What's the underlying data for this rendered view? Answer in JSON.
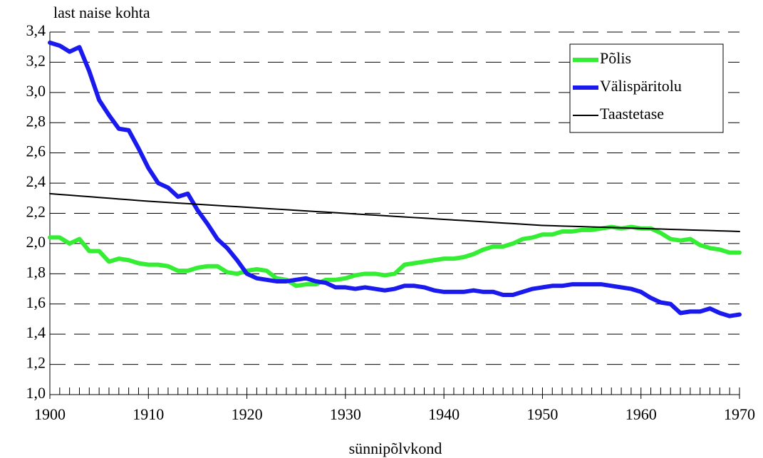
{
  "chart_data": {
    "type": "line",
    "y_label": "last naise kohta",
    "x_label": "sünnipõlvkond",
    "x": [
      1900,
      1901,
      1902,
      1903,
      1904,
      1905,
      1906,
      1907,
      1908,
      1909,
      1910,
      1911,
      1912,
      1913,
      1914,
      1915,
      1916,
      1917,
      1918,
      1919,
      1920,
      1921,
      1922,
      1923,
      1924,
      1925,
      1926,
      1927,
      1928,
      1929,
      1930,
      1931,
      1932,
      1933,
      1934,
      1935,
      1936,
      1937,
      1938,
      1939,
      1940,
      1941,
      1942,
      1943,
      1944,
      1945,
      1946,
      1947,
      1948,
      1949,
      1950,
      1951,
      1952,
      1953,
      1954,
      1955,
      1956,
      1957,
      1958,
      1959,
      1960,
      1961,
      1962,
      1963,
      1964,
      1965,
      1966,
      1967,
      1968,
      1969,
      1970
    ],
    "series": [
      {
        "name": "Põlis",
        "color": "#33ee33",
        "width": 6,
        "values": [
          2.04,
          2.04,
          2.0,
          2.03,
          1.95,
          1.95,
          1.88,
          1.9,
          1.89,
          1.87,
          1.86,
          1.86,
          1.85,
          1.82,
          1.82,
          1.84,
          1.85,
          1.85,
          1.81,
          1.8,
          1.82,
          1.83,
          1.82,
          1.77,
          1.76,
          1.72,
          1.73,
          1.73,
          1.76,
          1.76,
          1.77,
          1.79,
          1.8,
          1.8,
          1.79,
          1.8,
          1.86,
          1.87,
          1.88,
          1.89,
          1.9,
          1.9,
          1.91,
          1.93,
          1.96,
          1.98,
          1.98,
          2.0,
          2.03,
          2.04,
          2.06,
          2.06,
          2.08,
          2.08,
          2.09,
          2.09,
          2.1,
          2.11,
          2.1,
          2.11,
          2.1,
          2.1,
          2.07,
          2.03,
          2.02,
          2.03,
          1.99,
          1.97,
          1.96,
          1.94,
          1.94
        ]
      },
      {
        "name": "Välispäritolu",
        "color": "#1a1aee",
        "width": 6,
        "values": [
          3.33,
          3.31,
          3.27,
          3.3,
          3.14,
          2.95,
          2.85,
          2.76,
          2.75,
          2.63,
          2.5,
          2.4,
          2.37,
          2.31,
          2.33,
          2.22,
          2.13,
          2.03,
          1.97,
          1.89,
          1.8,
          1.77,
          1.76,
          1.75,
          1.75,
          1.76,
          1.77,
          1.75,
          1.74,
          1.71,
          1.71,
          1.7,
          1.71,
          1.7,
          1.69,
          1.7,
          1.72,
          1.72,
          1.71,
          1.69,
          1.68,
          1.68,
          1.68,
          1.69,
          1.68,
          1.68,
          1.66,
          1.66,
          1.68,
          1.7,
          1.71,
          1.72,
          1.72,
          1.73,
          1.73,
          1.73,
          1.73,
          1.72,
          1.71,
          1.7,
          1.68,
          1.64,
          1.61,
          1.6,
          1.54,
          1.55,
          1.55,
          1.57,
          1.54,
          1.52,
          1.53
        ]
      },
      {
        "name": "Taastetase",
        "color": "#000000",
        "width": 2,
        "values": [
          2.33,
          2.325,
          2.32,
          2.315,
          2.31,
          2.305,
          2.3,
          2.295,
          2.29,
          2.285,
          2.28,
          2.276,
          2.272,
          2.268,
          2.264,
          2.26,
          2.256,
          2.252,
          2.248,
          2.244,
          2.24,
          2.236,
          2.232,
          2.228,
          2.224,
          2.22,
          2.216,
          2.212,
          2.208,
          2.204,
          2.2,
          2.196,
          2.192,
          2.188,
          2.184,
          2.18,
          2.176,
          2.172,
          2.168,
          2.164,
          2.16,
          2.156,
          2.152,
          2.148,
          2.144,
          2.14,
          2.136,
          2.132,
          2.128,
          2.124,
          2.12,
          2.118,
          2.116,
          2.114,
          2.112,
          2.11,
          2.108,
          2.106,
          2.104,
          2.102,
          2.1,
          2.098,
          2.096,
          2.094,
          2.092,
          2.09,
          2.088,
          2.086,
          2.084,
          2.082,
          2.08
        ]
      }
    ],
    "xlim": [
      1900,
      1970
    ],
    "xticks": [
      1900,
      1910,
      1920,
      1930,
      1940,
      1950,
      1960,
      1970
    ],
    "ylim": [
      1.0,
      3.4
    ],
    "yticks": [
      {
        "value": 1.0,
        "label": "1,0"
      },
      {
        "value": 1.2,
        "label": "1,2"
      },
      {
        "value": 1.4,
        "label": "1,4"
      },
      {
        "value": 1.6,
        "label": "1,6"
      },
      {
        "value": 1.8,
        "label": "1,8"
      },
      {
        "value": 2.0,
        "label": "2,0"
      },
      {
        "value": 2.2,
        "label": "2,2"
      },
      {
        "value": 2.4,
        "label": "2,4"
      },
      {
        "value": 2.6,
        "label": "2,6"
      },
      {
        "value": 2.8,
        "label": "2,8"
      },
      {
        "value": 3.0,
        "label": "3,0"
      },
      {
        "value": 3.2,
        "label": "3,2"
      },
      {
        "value": 3.4,
        "label": "3,4"
      }
    ],
    "grid": true,
    "legend": "upper right"
  }
}
